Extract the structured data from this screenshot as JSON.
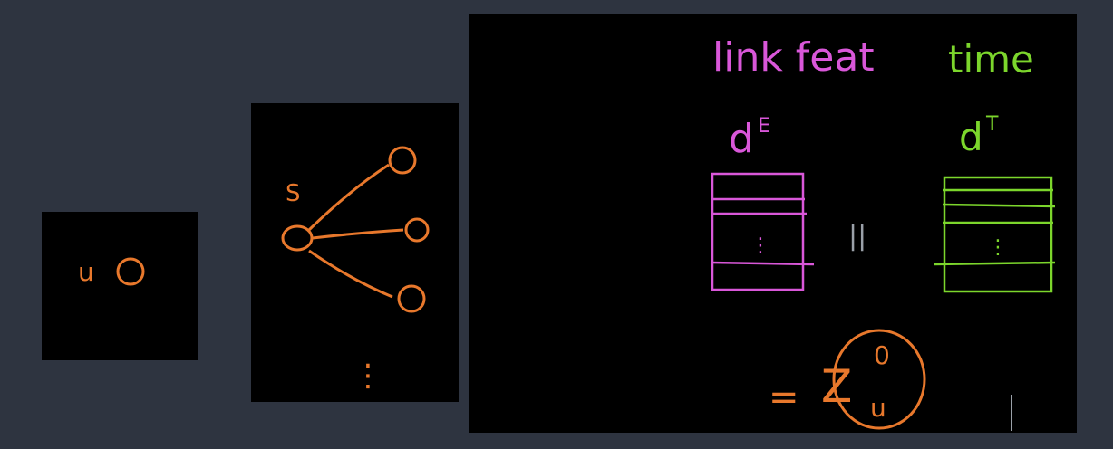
{
  "panels": {
    "node_panel": {
      "node_label": "u"
    },
    "neighbor_panel": {
      "node_label": "S",
      "ellipsis": "⋮"
    },
    "features_panel": {
      "link_feat_label": "link feat",
      "link_dim_label": "d",
      "link_dim_sup": "E",
      "time_label": "time",
      "time_dim_label": "d",
      "time_dim_sup": "T",
      "concat_symbol": "||",
      "equals_symbol": "=",
      "result_base": "Z",
      "result_sup": "0",
      "result_sub": "u",
      "row_dots": "⋮"
    }
  },
  "colors": {
    "background": "#2e3440",
    "panel": "#000000",
    "orange": "#e8782c",
    "pink": "#d957d9",
    "green": "#7cd62c",
    "gray": "#9aa0a8"
  }
}
